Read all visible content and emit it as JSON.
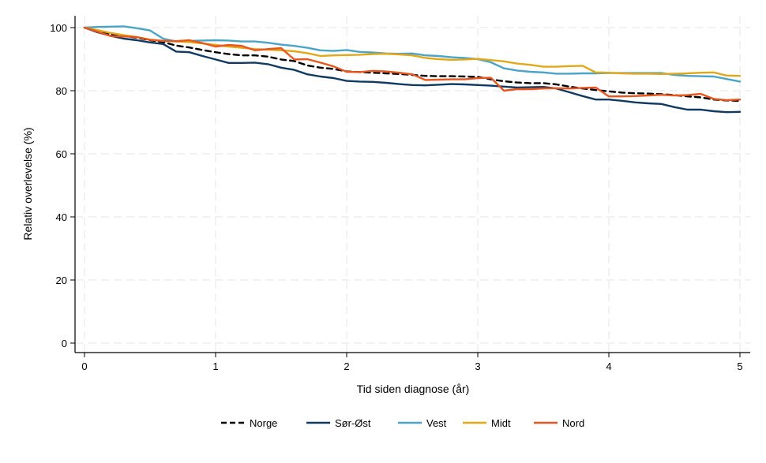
{
  "chart_data": {
    "type": "line",
    "title": "",
    "xlabel": "Tid siden diagnose (år)",
    "ylabel": "Relativ overlevelse (%)",
    "xlim": [
      0,
      5
    ],
    "ylim": [
      0,
      100
    ],
    "xticks": [
      0,
      1,
      2,
      3,
      4,
      5
    ],
    "yticks": [
      0,
      20,
      40,
      60,
      80,
      100
    ],
    "grid": true,
    "legend_position": "bottom",
    "series": [
      {
        "name": "Norge",
        "color": "#000000",
        "dash": true,
        "x": [
          0,
          0.1,
          0.2,
          0.3,
          0.4,
          0.5,
          0.6,
          0.7,
          0.8,
          0.9,
          1.0,
          1.1,
          1.2,
          1.3,
          1.4,
          1.5,
          1.6,
          1.7,
          1.8,
          1.9,
          2.0,
          2.1,
          2.2,
          2.3,
          2.4,
          2.5,
          2.6,
          2.7,
          2.8,
          2.9,
          3.0,
          3.1,
          3.2,
          3.3,
          3.4,
          3.5,
          3.6,
          3.7,
          3.8,
          3.9,
          4.0,
          4.1,
          4.2,
          4.3,
          4.4,
          4.5,
          4.6,
          4.7,
          4.8,
          4.9,
          5.0
        ],
        "y": [
          100,
          98.8,
          97.9,
          97.3,
          96.8,
          96.0,
          95.4,
          94.3,
          93.7,
          92.9,
          92.2,
          91.6,
          91.2,
          91.2,
          90.8,
          89.9,
          89.4,
          88.0,
          87.3,
          86.9,
          86.1,
          85.9,
          85.7,
          85.5,
          85.3,
          85.0,
          84.7,
          84.6,
          84.6,
          84.5,
          84.4,
          83.6,
          83.0,
          82.6,
          82.4,
          82.4,
          82.0,
          81.3,
          80.7,
          80.2,
          79.8,
          79.4,
          79.2,
          79.1,
          78.9,
          78.6,
          78.2,
          77.9,
          77.2,
          76.9,
          76.8
        ]
      },
      {
        "name": "Sør-Øst",
        "color": "#0f3a62",
        "dash": false,
        "x": [
          0,
          0.1,
          0.2,
          0.3,
          0.4,
          0.5,
          0.6,
          0.7,
          0.8,
          0.9,
          1.0,
          1.1,
          1.2,
          1.3,
          1.4,
          1.5,
          1.6,
          1.7,
          1.8,
          1.9,
          2.0,
          2.1,
          2.2,
          2.3,
          2.4,
          2.5,
          2.6,
          2.7,
          2.8,
          2.9,
          3.0,
          3.1,
          3.2,
          3.3,
          3.4,
          3.5,
          3.6,
          3.7,
          3.8,
          3.9,
          4.0,
          4.1,
          4.2,
          4.3,
          4.4,
          4.5,
          4.6,
          4.7,
          4.8,
          4.9,
          5.0
        ],
        "y": [
          100,
          98.5,
          97.4,
          96.5,
          96.0,
          95.3,
          94.8,
          92.4,
          92.2,
          91.0,
          89.9,
          88.8,
          88.8,
          88.9,
          88.4,
          87.3,
          86.6,
          85.2,
          84.5,
          84.0,
          83.1,
          82.9,
          82.8,
          82.5,
          82.1,
          81.8,
          81.7,
          81.9,
          82.1,
          82.0,
          81.8,
          81.6,
          81.3,
          81.0,
          81.1,
          81.2,
          80.7,
          79.5,
          78.3,
          77.2,
          77.2,
          76.8,
          76.3,
          76.0,
          75.8,
          74.8,
          74.0,
          74.0,
          73.5,
          73.2,
          73.3
        ]
      },
      {
        "name": "Vest",
        "color": "#4aa4c7",
        "dash": false,
        "x": [
          0,
          0.1,
          0.2,
          0.3,
          0.4,
          0.5,
          0.6,
          0.7,
          0.8,
          0.9,
          1.0,
          1.1,
          1.2,
          1.3,
          1.4,
          1.5,
          1.6,
          1.7,
          1.8,
          1.9,
          2.0,
          2.1,
          2.2,
          2.3,
          2.4,
          2.5,
          2.6,
          2.7,
          2.8,
          2.9,
          3.0,
          3.1,
          3.2,
          3.3,
          3.4,
          3.5,
          3.6,
          3.7,
          3.8,
          3.9,
          4.0,
          4.1,
          4.2,
          4.3,
          4.4,
          4.5,
          4.6,
          4.7,
          4.8,
          4.9,
          5.0
        ],
        "y": [
          100,
          100.2,
          100.3,
          100.4,
          99.8,
          99.1,
          96.5,
          95.6,
          95.8,
          95.9,
          96.0,
          95.9,
          95.6,
          95.6,
          95.2,
          94.6,
          94.2,
          93.6,
          92.8,
          92.6,
          92.9,
          92.3,
          92.1,
          91.8,
          91.7,
          91.8,
          91.2,
          91.0,
          90.6,
          90.4,
          90.0,
          89.0,
          87.1,
          86.4,
          86.0,
          85.8,
          85.4,
          85.4,
          85.5,
          85.5,
          85.6,
          85.6,
          85.6,
          85.6,
          85.6,
          85.0,
          84.7,
          84.6,
          84.5,
          83.7,
          82.9
        ]
      },
      {
        "name": "Midt",
        "color": "#e3a818",
        "dash": false,
        "x": [
          0,
          0.1,
          0.2,
          0.3,
          0.4,
          0.5,
          0.6,
          0.7,
          0.8,
          0.9,
          1.0,
          1.1,
          1.2,
          1.3,
          1.4,
          1.5,
          1.6,
          1.7,
          1.8,
          1.9,
          2.0,
          2.1,
          2.2,
          2.3,
          2.4,
          2.5,
          2.6,
          2.7,
          2.8,
          2.9,
          3.0,
          3.1,
          3.2,
          3.3,
          3.4,
          3.5,
          3.6,
          3.7,
          3.8,
          3.9,
          4.0,
          4.1,
          4.2,
          4.3,
          4.4,
          4.5,
          4.6,
          4.7,
          4.8,
          4.9,
          5.0
        ],
        "y": [
          100,
          99.2,
          98.3,
          97.6,
          97.0,
          96.2,
          95.8,
          95.6,
          95.4,
          95.0,
          94.5,
          94.0,
          93.6,
          93.2,
          93.0,
          92.8,
          92.5,
          91.9,
          91.0,
          91.2,
          91.3,
          91.4,
          91.6,
          91.7,
          91.5,
          91.2,
          90.4,
          90.0,
          89.8,
          89.9,
          90.1,
          89.7,
          89.3,
          88.6,
          88.2,
          87.6,
          87.6,
          87.8,
          87.9,
          85.8,
          85.7,
          85.5,
          85.4,
          85.4,
          85.3,
          85.4,
          85.5,
          85.7,
          85.8,
          84.8,
          84.7
        ]
      },
      {
        "name": "Nord",
        "color": "#e8561e",
        "dash": false,
        "x": [
          0,
          0.1,
          0.2,
          0.3,
          0.4,
          0.5,
          0.6,
          0.7,
          0.8,
          0.9,
          1.0,
          1.1,
          1.2,
          1.3,
          1.4,
          1.5,
          1.6,
          1.7,
          1.8,
          1.9,
          2.0,
          2.1,
          2.2,
          2.3,
          2.4,
          2.5,
          2.6,
          2.7,
          2.8,
          2.9,
          3.0,
          3.1,
          3.2,
          3.3,
          3.4,
          3.5,
          3.6,
          3.7,
          3.8,
          3.9,
          4.0,
          4.1,
          4.2,
          4.3,
          4.4,
          4.5,
          4.6,
          4.7,
          4.8,
          4.9,
          5.0
        ],
        "y": [
          100,
          98.7,
          97.3,
          97.2,
          97.0,
          96.1,
          95.8,
          95.7,
          96.0,
          95.1,
          94.0,
          94.5,
          94.2,
          92.8,
          93.2,
          93.5,
          89.9,
          90.0,
          88.9,
          87.7,
          86.0,
          85.9,
          86.3,
          86.1,
          85.7,
          85.2,
          83.4,
          83.5,
          83.6,
          83.6,
          84.0,
          84.1,
          80.0,
          80.5,
          80.5,
          80.7,
          80.8,
          80.7,
          80.9,
          81.0,
          78.2,
          78.2,
          78.3,
          78.5,
          78.7,
          78.5,
          78.6,
          79.0,
          77.4,
          77.0,
          77.2
        ]
      }
    ]
  }
}
